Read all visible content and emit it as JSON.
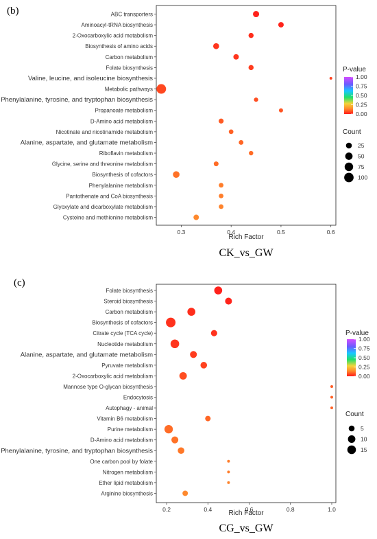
{
  "chart_data": [
    {
      "type": "scatter",
      "panel_label": "(b)",
      "caption": "CK_vs_GW",
      "xlabel": "Rich Factor",
      "xlim": [
        0.25,
        0.61
      ],
      "xticks": [
        0.3,
        0.4,
        0.5,
        0.6
      ],
      "xtick_labels": [
        "0.3",
        "0.4",
        "0.5",
        "0.6"
      ],
      "grid": false,
      "legend": {
        "color_title": "P-value",
        "color_ticks": [
          "1.00",
          "0.75",
          "0.50",
          "0.25",
          "0.00"
        ],
        "size_title": "Count",
        "size_values": [
          25,
          50,
          75,
          100
        ],
        "size_labels": [
          "25",
          "50",
          "75",
          "100"
        ],
        "placement": "right"
      },
      "points": [
        {
          "term": "ABC transporters",
          "rich_factor": 0.45,
          "count": 30,
          "p_value": 0.02,
          "large_label": false
        },
        {
          "term": "Aminoacyl-tRNA biosynthesis",
          "rich_factor": 0.5,
          "count": 20,
          "p_value": 0.03,
          "large_label": false
        },
        {
          "term": "2-Oxocarboxylic acid metabolism",
          "rich_factor": 0.44,
          "count": 16,
          "p_value": 0.06,
          "large_label": false
        },
        {
          "term": "Biosynthesis of amino acids",
          "rich_factor": 0.37,
          "count": 26,
          "p_value": 0.08,
          "large_label": false
        },
        {
          "term": "Carbon metabolism",
          "rich_factor": 0.41,
          "count": 20,
          "p_value": 0.08,
          "large_label": false
        },
        {
          "term": "Folate biosynthesis",
          "rich_factor": 0.44,
          "count": 16,
          "p_value": 0.1,
          "large_label": false
        },
        {
          "term": "Valine, leucine, and isoleucine biosynthesis",
          "rich_factor": 0.6,
          "count": 4,
          "p_value": 0.11,
          "large_label": true
        },
        {
          "term": "Metabolic pathways",
          "rich_factor": 0.26,
          "count": 105,
          "p_value": 0.12,
          "large_label": false
        },
        {
          "term": "Phenylalanine, tyrosine, and tryptophan biosynthesis",
          "rich_factor": 0.45,
          "count": 9,
          "p_value": 0.13,
          "large_label": true
        },
        {
          "term": "Propanoate metabolism",
          "rich_factor": 0.5,
          "count": 8,
          "p_value": 0.14,
          "large_label": false
        },
        {
          "term": "D-Amino acid metabolism",
          "rich_factor": 0.38,
          "count": 15,
          "p_value": 0.15,
          "large_label": false
        },
        {
          "term": "Nicotinate and nicotinamide metabolism",
          "rich_factor": 0.4,
          "count": 12,
          "p_value": 0.16,
          "large_label": false
        },
        {
          "term": "Alanine, aspartate, and glutamate metabolism",
          "rich_factor": 0.42,
          "count": 12,
          "p_value": 0.17,
          "large_label": true
        },
        {
          "term": "Riboflavin metabolism",
          "rich_factor": 0.44,
          "count": 10,
          "p_value": 0.18,
          "large_label": false
        },
        {
          "term": "Glycine, serine and threonine metabolism",
          "rich_factor": 0.37,
          "count": 13,
          "p_value": 0.18,
          "large_label": false
        },
        {
          "term": "Biosynthesis of cofactors",
          "rich_factor": 0.29,
          "count": 36,
          "p_value": 0.19,
          "large_label": false
        },
        {
          "term": "Phenylalanine metabolism",
          "rich_factor": 0.38,
          "count": 12,
          "p_value": 0.21,
          "large_label": false
        },
        {
          "term": "Pantothenate and CoA biosynthesis",
          "rich_factor": 0.38,
          "count": 12,
          "p_value": 0.21,
          "large_label": false
        },
        {
          "term": "Glyoxylate and dicarboxylate metabolism",
          "rich_factor": 0.38,
          "count": 12,
          "p_value": 0.22,
          "large_label": false
        },
        {
          "term": "Cysteine and methionine metabolism",
          "rich_factor": 0.33,
          "count": 20,
          "p_value": 0.23,
          "large_label": false
        }
      ]
    },
    {
      "type": "scatter",
      "panel_label": "(c)",
      "caption": "CG_vs_GW",
      "xlabel": "Rich Factor",
      "xlim": [
        0.15,
        1.02
      ],
      "xticks": [
        0.2,
        0.4,
        0.6,
        0.8,
        1.0
      ],
      "xtick_labels": [
        "0.2",
        "0.4",
        "0.6",
        "0.8",
        "1.0"
      ],
      "grid": false,
      "legend": {
        "color_title": "P-value",
        "color_ticks": [
          "1.00",
          "0.75",
          "0.50",
          "0.25",
          "0.00"
        ],
        "size_title": "Count",
        "size_values": [
          5,
          10,
          15
        ],
        "size_labels": [
          "5",
          "10",
          "15"
        ],
        "placement": "right"
      },
      "points": [
        {
          "term": "Folate biosynthesis",
          "rich_factor": 0.45,
          "count": 12,
          "p_value": 0.02,
          "large_label": false
        },
        {
          "term": "Steroid biosynthesis",
          "rich_factor": 0.5,
          "count": 8,
          "p_value": 0.03,
          "large_label": false
        },
        {
          "term": "Carbon metabolism",
          "rich_factor": 0.32,
          "count": 12,
          "p_value": 0.06,
          "large_label": false
        },
        {
          "term": "Biosynthesis of cofactors",
          "rich_factor": 0.22,
          "count": 20,
          "p_value": 0.07,
          "large_label": false
        },
        {
          "term": "Citrate cycle (TCA cycle)",
          "rich_factor": 0.43,
          "count": 6,
          "p_value": 0.07,
          "large_label": false
        },
        {
          "term": "Nucleotide metabolism",
          "rich_factor": 0.24,
          "count": 15,
          "p_value": 0.08,
          "large_label": false
        },
        {
          "term": "Alanine, aspartate, and glutamate metabolism",
          "rich_factor": 0.33,
          "count": 8,
          "p_value": 0.1,
          "large_label": true
        },
        {
          "term": "Pyruvate metabolism",
          "rich_factor": 0.38,
          "count": 7,
          "p_value": 0.11,
          "large_label": false
        },
        {
          "term": "2-Oxocarboxylic acid metabolism",
          "rich_factor": 0.28,
          "count": 10,
          "p_value": 0.13,
          "large_label": false
        },
        {
          "term": "Mannose type O-glycan biosynthesis",
          "rich_factor": 1.0,
          "count": 1,
          "p_value": 0.15,
          "large_label": false
        },
        {
          "term": "Endocytosis",
          "rich_factor": 1.0,
          "count": 1,
          "p_value": 0.16,
          "large_label": false
        },
        {
          "term": "Autophagy - animal",
          "rich_factor": 1.0,
          "count": 1,
          "p_value": 0.16,
          "large_label": false
        },
        {
          "term": "Vitamin B6 metabolism",
          "rich_factor": 0.4,
          "count": 4,
          "p_value": 0.17,
          "large_label": false
        },
        {
          "term": "Purine metabolism",
          "rich_factor": 0.21,
          "count": 14,
          "p_value": 0.18,
          "large_label": false
        },
        {
          "term": "D-Amino acid metabolism",
          "rich_factor": 0.24,
          "count": 8,
          "p_value": 0.19,
          "large_label": false
        },
        {
          "term": "Phenylalanine, tyrosine, and tryptophan biosynthesis",
          "rich_factor": 0.27,
          "count": 7,
          "p_value": 0.2,
          "large_label": true
        },
        {
          "term": "One carbon pool by folate",
          "rich_factor": 0.5,
          "count": 1,
          "p_value": 0.21,
          "large_label": false
        },
        {
          "term": "Nitrogen metabolism",
          "rich_factor": 0.5,
          "count": 1,
          "p_value": 0.21,
          "large_label": false
        },
        {
          "term": "Ether lipid metabolism",
          "rich_factor": 0.5,
          "count": 1,
          "p_value": 0.22,
          "large_label": false
        },
        {
          "term": "Arginine biosynthesis",
          "rich_factor": 0.29,
          "count": 4,
          "p_value": 0.23,
          "large_label": false
        }
      ]
    }
  ]
}
